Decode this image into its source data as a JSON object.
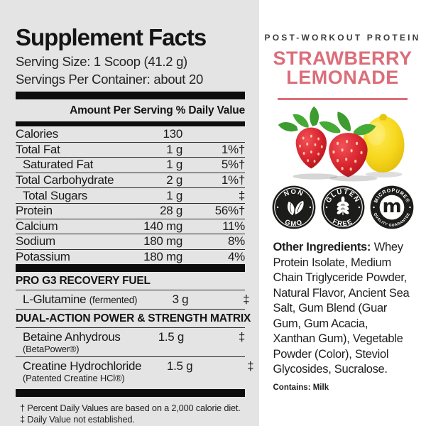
{
  "left_panel": {
    "title": "Supplement Facts",
    "serving_size": "Serving Size: 1 Scoop (41.2 g)",
    "servings_per_container": "Servings Per Container: about 20",
    "column_header": "Amount Per Serving % Daily Value",
    "nutrients": [
      {
        "name": "Calories",
        "amount": "130",
        "dv": "",
        "indent": false
      },
      {
        "name": "Total Fat",
        "amount": "1 g",
        "dv": "1%†",
        "indent": false
      },
      {
        "name": "Saturated Fat",
        "amount": "1 g",
        "dv": "5%†",
        "indent": true
      },
      {
        "name": "Total Carbohydrate",
        "amount": "2 g",
        "dv": "1%†",
        "indent": false
      },
      {
        "name": "Total Sugars",
        "amount": "1 g",
        "dv": "‡",
        "indent": true
      },
      {
        "name": "Protein",
        "amount": "28 g",
        "dv": "56%†",
        "indent": false
      },
      {
        "name": "Calcium",
        "amount": "140 mg",
        "dv": "11%",
        "indent": false
      },
      {
        "name": "Sodium",
        "amount": "180 mg",
        "dv": "8%",
        "indent": false
      },
      {
        "name": "Potassium",
        "amount": "180 mg",
        "dv": "4%",
        "indent": false
      }
    ],
    "sections": [
      {
        "header": "PRO G3 RECOVERY FUEL",
        "rows": [
          {
            "name": "L-Glutamine",
            "qualifier": "(fermented)",
            "qualifier_layout": "inline",
            "amount": "3 g",
            "dv": "‡"
          }
        ]
      },
      {
        "header": "DUAL-ACTION POWER & STRENGTH MATRIX",
        "rows": [
          {
            "name": "Betaine Anhydrous",
            "qualifier": "(BetaPower®)",
            "qualifier_layout": "below",
            "amount": "1.5 g",
            "dv": "‡"
          },
          {
            "name": "Creatine Hydrochloride",
            "qualifier": "(Patented Creatine HCl®)",
            "qualifier_layout": "below",
            "amount": "1.5 g",
            "dv": "‡"
          }
        ]
      }
    ],
    "footnotes": [
      "† Percent Daily Values are based on a 2,000 calorie diet.",
      "‡ Daily Value not established."
    ]
  },
  "right_panel": {
    "eyebrow": "POST-WORKOUT PROTEIN",
    "flavor_line1": "STRAWBERRY",
    "flavor_line2": "LEMONADE",
    "accent_color": "#dc6e79",
    "badge_color": "#1c1c1a",
    "badges": [
      {
        "icon": "leaves-icon",
        "top_text": "NON",
        "bottom_text": "GMO",
        "style": "disc"
      },
      {
        "icon": "wheat-icon",
        "top_text": "GLUTEN",
        "bottom_text": "FREE",
        "style": "disc"
      },
      {
        "icon": "micropure-m-icon",
        "top_text": "MICROPURE®",
        "bottom_text": "QUALITY GUARANTEE",
        "style": "ring"
      }
    ],
    "other_ingredients_label": "Other Ingredients:",
    "other_ingredients_text": "Whey Protein Isolate, Medium Chain Triglyceride Powder, Natural Flavor, Ancient Sea Salt, Gum Blend (Guar Gum, Gum Acacia, Xanthan Gum), Vegetable Powder (Color), Steviol Glycosides, Sucralose.",
    "contains": "Contains: Milk"
  }
}
